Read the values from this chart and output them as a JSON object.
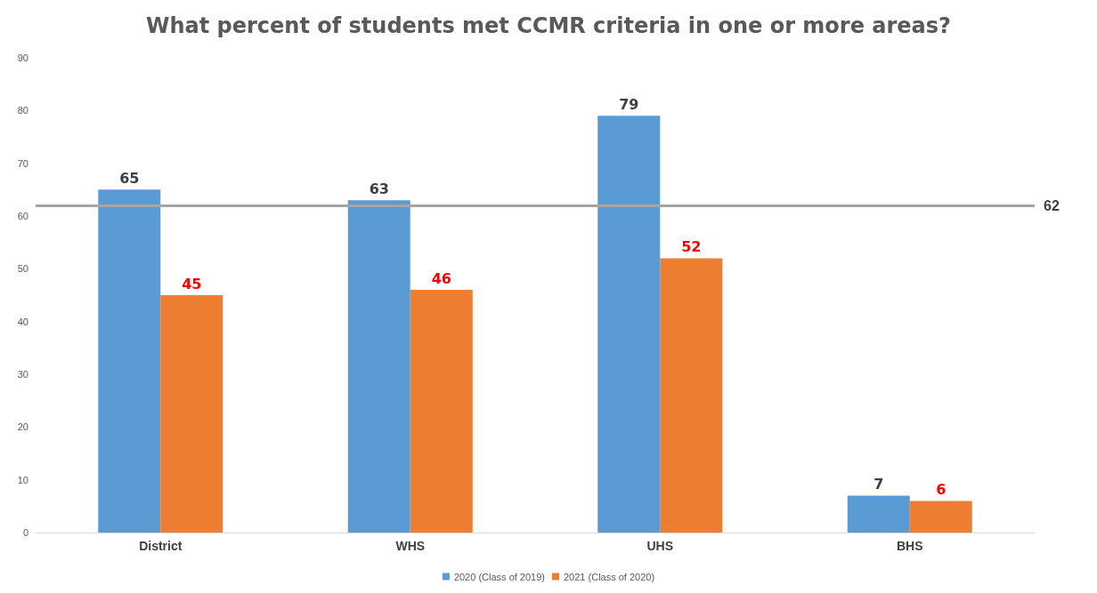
{
  "chart_data": {
    "type": "bar",
    "title": "What percent of students met CCMR criteria in one or more areas?",
    "categories": [
      "District",
      "WHS",
      "UHS",
      "BHS"
    ],
    "series": [
      {
        "name": "2020 (Class of 2019)",
        "color": "#5b9bd5",
        "values": [
          65,
          63,
          79,
          7
        ]
      },
      {
        "name": "2021 (Class of 2020)",
        "color": "#ed7d31",
        "values": [
          45,
          46,
          52,
          6
        ]
      }
    ],
    "ylim": [
      0,
      90
    ],
    "yticks": [
      0,
      10,
      20,
      30,
      40,
      50,
      60,
      70,
      80,
      90
    ],
    "ref_lines": [
      {
        "axis": "y",
        "value": 62,
        "label": "62",
        "color": "#a5a5a5"
      }
    ],
    "data_labels": true,
    "grid": false,
    "legend": "bottom"
  }
}
